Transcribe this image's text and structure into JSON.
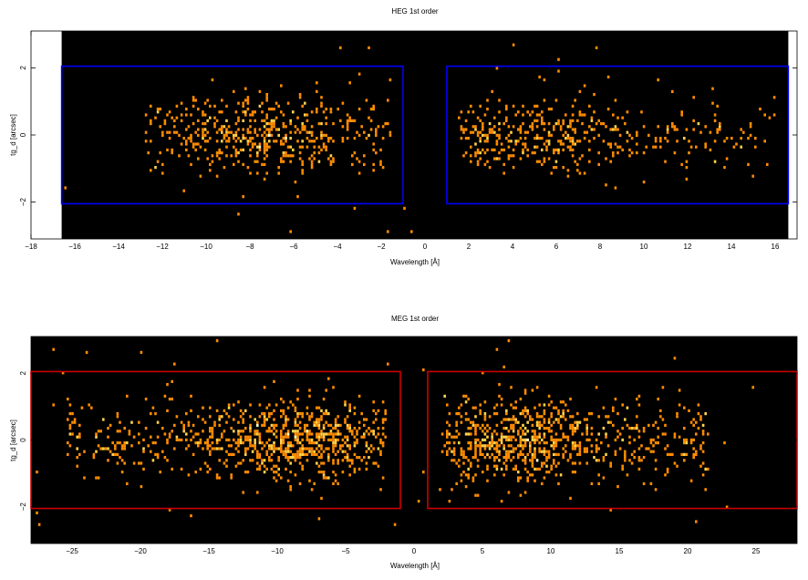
{
  "chart_data": [
    {
      "type": "heatmap",
      "title": "HEG 1st order",
      "xlabel": "Wavelength [Å]",
      "ylabel": "tg_d [arcsec]",
      "xlim": [
        -18,
        17
      ],
      "ylim": [
        -3.1,
        3.1
      ],
      "data_xlim": [
        -16.6,
        16.6
      ],
      "x_ticks": [
        -18,
        -16,
        -14,
        -12,
        -10,
        -8,
        -6,
        -4,
        -2,
        0,
        2,
        4,
        6,
        8,
        10,
        12,
        14,
        16
      ],
      "x_ticklabels": [
        "−18",
        "−16",
        "−14",
        "−12",
        "−10",
        "−8",
        "−6",
        "−4",
        "−2",
        "0",
        "2",
        "4",
        "6",
        "8",
        "10",
        "12",
        "14",
        "16"
      ],
      "y_ticks": [
        -2,
        0,
        2
      ],
      "y_ticklabels": [
        "−2",
        "0",
        "2"
      ],
      "colormap": [
        "#000000",
        "#ff8c00",
        "#ffd24d",
        "#ffffd0"
      ],
      "extraction_regions": {
        "color": "#0000ff",
        "boxes": [
          {
            "x": [
              -16.6,
              -1.0
            ],
            "y": [
              -2.05,
              2.05
            ]
          },
          {
            "x": [
              1.0,
              16.6
            ],
            "y": [
              -2.05,
              2.05
            ]
          }
        ]
      },
      "events": {
        "neg_order": {
          "x_range": [
            -12.8,
            -1.6
          ],
          "peak_x": -7.5,
          "core_width": 2.6,
          "count": 520
        },
        "pos_order": {
          "x_range": [
            1.6,
            16.2
          ],
          "peak_x": 4.5,
          "core_width": 2.8,
          "count": 480
        },
        "y_sigma": 0.55,
        "outliers": 30
      }
    },
    {
      "type": "heatmap",
      "title": "MEG 1st order",
      "xlabel": "Wavelength [Å]",
      "ylabel": "tg_d [arcsec]",
      "xlim": [
        -28,
        28
      ],
      "ylim": [
        -3.1,
        3.1
      ],
      "data_xlim": [
        -28,
        28
      ],
      "x_ticks": [
        -25,
        -20,
        -15,
        -10,
        -5,
        0,
        5,
        10,
        15,
        20,
        25
      ],
      "x_ticklabels": [
        "−25",
        "−20",
        "−15",
        "−10",
        "−5",
        "0",
        "5",
        "10",
        "15",
        "20",
        "25"
      ],
      "y_ticks": [
        -2,
        0,
        2
      ],
      "y_ticklabels": [
        "−2",
        "0",
        "2"
      ],
      "colormap": [
        "#000000",
        "#ff8c00",
        "#ffd24d",
        "#ffffd0"
      ],
      "extraction_regions": {
        "color": "#cc0000",
        "boxes": [
          {
            "x": [
              -28,
              -1.0
            ],
            "y": [
              -2.05,
              2.05
            ]
          },
          {
            "x": [
              1.0,
              28
            ],
            "y": [
              -2.05,
              2.05
            ]
          }
        ]
      },
      "events": {
        "neg_order": {
          "x_range": [
            -25.5,
            -2.0
          ],
          "peak_x": -8.5,
          "core_width": 3.5,
          "count": 900
        },
        "pos_order": {
          "x_range": [
            2.0,
            21.5
          ],
          "peak_x": 7.5,
          "core_width": 3.0,
          "count": 820
        },
        "y_sigma": 0.6,
        "outliers": 40
      }
    }
  ]
}
